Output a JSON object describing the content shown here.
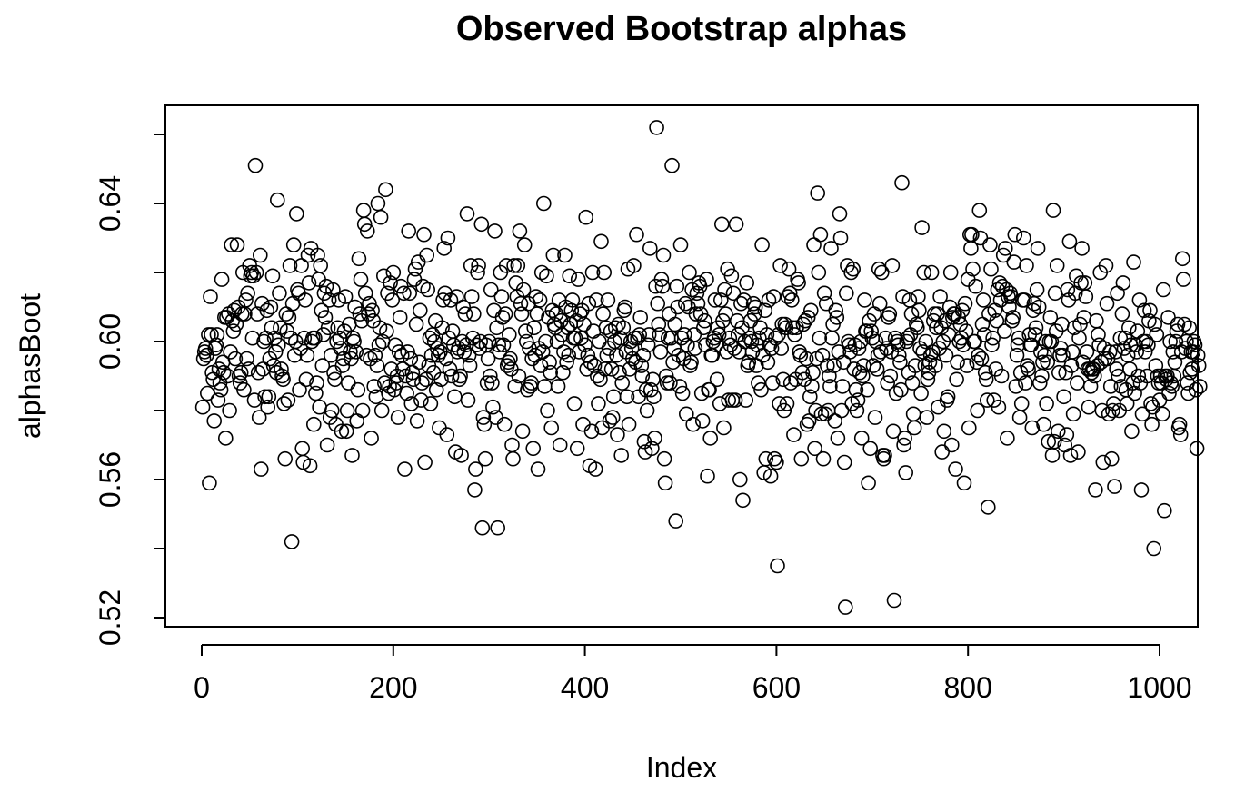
{
  "chart_data": {
    "type": "scatter",
    "title": "Observed Bootstrap alphas",
    "xlabel": "Index",
    "ylabel": "alphasBoot",
    "xlim": [
      0,
      1000
    ],
    "ylim": [
      0.52,
      0.66
    ],
    "x_ticks": [
      0,
      200,
      400,
      600,
      800,
      1000
    ],
    "x_tick_labels": [
      "0",
      "200",
      "400",
      "600",
      "800",
      "1000"
    ],
    "y_ticks": [
      0.52,
      0.54,
      0.56,
      0.58,
      0.6,
      0.62,
      0.64,
      0.66
    ],
    "y_tick_labels": [
      "0.52",
      "",
      "0.56",
      "",
      "0.60",
      "",
      "0.64",
      ""
    ],
    "grid": false,
    "legend": "none",
    "marker": "open-circle",
    "n_points": 1000,
    "x_start": 1,
    "y": [
      0.581,
      0.595,
      0.597,
      0.598,
      0.596,
      0.585,
      0.602,
      0.559,
      0.613,
      0.602,
      0.591,
      0.589,
      0.577,
      0.598,
      0.599,
      0.602,
      0.583,
      0.592,
      0.588,
      0.586,
      0.618,
      0.594,
      0.591,
      0.607,
      0.572,
      0.607,
      0.59,
      0.608,
      0.58,
      0.597,
      0.628,
      0.606,
      0.603,
      0.609,
      0.595,
      0.605,
      0.628,
      0.61,
      0.59,
      0.588,
      0.591,
      0.608,
      0.62,
      0.586,
      0.608,
      0.612,
      0.595,
      0.614,
      0.592,
      0.622,
      0.619,
      0.62,
      0.601,
      0.619,
      0.583,
      0.651,
      0.62,
      0.608,
      0.591,
      0.578,
      0.625,
      0.563,
      0.611,
      0.592,
      0.6,
      0.584,
      0.601,
      0.609,
      0.581,
      0.584,
      0.595,
      0.61,
      0.604,
      0.619,
      0.593,
      0.601,
      0.597,
      0.591,
      0.641,
      0.599,
      0.614,
      0.604,
      0.592,
      0.59,
      0.589,
      0.582,
      0.566,
      0.608,
      0.603,
      0.583,
      0.607,
      0.622,
      0.601,
      0.542,
      0.611,
      0.628,
      0.596,
      0.6,
      0.637,
      0.615,
      0.614,
      0.586,
      0.598,
      0.622,
      0.569,
      0.565,
      0.601,
      0.612,
      0.589,
      0.596,
      0.625,
      0.617,
      0.564,
      0.627,
      0.6,
      0.601,
      0.576,
      0.601,
      0.585,
      0.588,
      0.625,
      0.618,
      0.581,
      0.622,
      0.609,
      0.593,
      0.602,
      0.614,
      0.607,
      0.616,
      0.57,
      0.604,
      0.612,
      0.578,
      0.596,
      0.58,
      0.615,
      0.591,
      0.589,
      0.576,
      0.6,
      0.604,
      0.612,
      0.601,
      0.598,
      0.574,
      0.593,
      0.595,
      0.603,
      0.613,
      0.574,
      0.58,
      0.588,
      0.605,
      0.597,
      0.595,
      0.567,
      0.601,
      0.6,
      0.61,
      0.597,
      0.577,
      0.586,
      0.624,
      0.608,
      0.618,
      0.606,
      0.58,
      0.638,
      0.634,
      0.614,
      0.596,
      0.632,
      0.608,
      0.611,
      0.595,
      0.572,
      0.609,
      0.606,
      0.587,
      0.596,
      0.584,
      0.593,
      0.64,
      0.599,
      0.604,
      0.636,
      0.58,
      0.6,
      0.619,
      0.588,
      0.644,
      0.603,
      0.614,
      0.585,
      0.587,
      0.617,
      0.592,
      0.612,
      0.62,
      0.586,
      0.599,
      0.588,
      0.59,
      0.578,
      0.597,
      0.607,
      0.616,
      0.596,
      0.592,
      0.614,
      0.563,
      0.59,
      0.585,
      0.597,
      0.632,
      0.614,
      0.595,
      0.582,
      0.591,
      0.589,
      0.618,
      0.621,
      0.605,
      0.577,
      0.623,
      0.594,
      0.609,
      0.583,
      0.588,
      0.616,
      0.631,
      0.565,
      0.589,
      0.625,
      0.615,
      0.593,
      0.601,
      0.582,
      0.596,
      0.602,
      0.591,
      0.6,
      0.606,
      0.586,
      0.598,
      0.596,
      0.575,
      0.597,
      0.589,
      0.604,
      0.612,
      0.627,
      0.614,
      0.595,
      0.573,
      0.63,
      0.601,
      0.592,
      0.612,
      0.59,
      0.603,
      0.599,
      0.584,
      0.568,
      0.613,
      0.597,
      0.598,
      0.589,
      0.59,
      0.567,
      0.6,
      0.61,
      0.597,
      0.608,
      0.599,
      0.637,
      0.583,
      0.596,
      0.593,
      0.622,
      0.613,
      0.601,
      0.608,
      0.557,
      0.563,
      0.599,
      0.62,
      0.622,
      0.598,
      0.6,
      0.634,
      0.546,
      0.578,
      0.576,
      0.566,
      0.599,
      0.588,
      0.595,
      0.6,
      0.59,
      0.615,
      0.588,
      0.581,
      0.609,
      0.632,
      0.578,
      0.604,
      0.546,
      0.599,
      0.597,
      0.62,
      0.613,
      0.607,
      0.599,
      0.576,
      0.608,
      0.622,
      0.593,
      0.594,
      0.602,
      0.595,
      0.592,
      0.57,
      0.566,
      0.622,
      0.587,
      0.617,
      0.613,
      0.622,
      0.59,
      0.632,
      0.611,
      0.608,
      0.574,
      0.615,
      0.628,
      0.603,
      0.6,
      0.586,
      0.611,
      0.598,
      0.587,
      0.588,
      0.595,
      0.569,
      0.604,
      0.596,
      0.613,
      0.608,
      0.563,
      0.598,
      0.612,
      0.593,
      0.62,
      0.597,
      0.64,
      0.587,
      0.6,
      0.619,
      0.58,
      0.607,
      0.594,
      0.591,
      0.575,
      0.609,
      0.625,
      0.605,
      0.604,
      0.608,
      0.6,
      0.587,
      0.612,
      0.57,
      0.606,
      0.602,
      0.591,
      0.597,
      0.625,
      0.61,
      0.594,
      0.604,
      0.596,
      0.619,
      0.605,
      0.609,
      0.612,
      0.601,
      0.582,
      0.601,
      0.606,
      0.569,
      0.618,
      0.597,
      0.608,
      0.601,
      0.609,
      0.576,
      0.605,
      0.599,
      0.636,
      0.592,
      0.596,
      0.611,
      0.564,
      0.594,
      0.574,
      0.62,
      0.603,
      0.593,
      0.563,
      0.612,
      0.59,
      0.582,
      0.6,
      0.589,
      0.629,
      0.575,
      0.608,
      0.62,
      0.592,
      0.604,
      0.596,
      0.612,
      0.598,
      0.577,
      0.603,
      0.592,
      0.578,
      0.584,
      0.6,
      0.604,
      0.596,
      0.573,
      0.605,
      0.591,
      0.601,
      0.567,
      0.588,
      0.604,
      0.609,
      0.61,
      0.597,
      0.584,
      0.621,
      0.576,
      0.592,
      0.6,
      0.598,
      0.595,
      0.622,
      0.601,
      0.594,
      0.631,
      0.601,
      0.584,
      0.602,
      0.607,
      0.593,
      0.59,
      0.596,
      0.571,
      0.568,
      0.586,
      0.58,
      0.599,
      0.602,
      0.627,
      0.586,
      0.569,
      0.589,
      0.584,
      0.572,
      0.616,
      0.662,
      0.611,
      0.605,
      0.602,
      0.597,
      0.618,
      0.616,
      0.625,
      0.566,
      0.559,
      0.59,
      0.588,
      0.601,
      0.608,
      0.588,
      0.601,
      0.651,
      0.594,
      0.598,
      0.605,
      0.548,
      0.616,
      0.61,
      0.596,
      0.587,
      0.628,
      0.601,
      0.585,
      0.595,
      0.602,
      0.611,
      0.579,
      0.599,
      0.61,
      0.62,
      0.593,
      0.594,
      0.615,
      0.576,
      0.602,
      0.598,
      0.608,
      0.614,
      0.611,
      0.617,
      0.616,
      0.608,
      0.585,
      0.577,
      0.604,
      0.606,
      0.599,
      0.618,
      0.561,
      0.586,
      0.586,
      0.572,
      0.596,
      0.596,
      0.6,
      0.601,
      0.612,
      0.599,
      0.589,
      0.604,
      0.602,
      0.582,
      0.612,
      0.634,
      0.606,
      0.575,
      0.615,
      0.608,
      0.597,
      0.621,
      0.583,
      0.601,
      0.599,
      0.619,
      0.583,
      0.614,
      0.598,
      0.583,
      0.634,
      0.606,
      0.602,
      0.597,
      0.56,
      0.611,
      0.604,
      0.554,
      0.612,
      0.6,
      0.583,
      0.617,
      0.593,
      0.594,
      0.601,
      0.606,
      0.6,
      0.597,
      0.611,
      0.608,
      0.61,
      0.593,
      0.599,
      0.588,
      0.601,
      0.604,
      0.586,
      0.628,
      0.596,
      0.562,
      0.609,
      0.566,
      0.602,
      0.594,
      0.612,
      0.599,
      0.561,
      0.598,
      0.588,
      0.613,
      0.566,
      0.601,
      0.565,
      0.535,
      0.602,
      0.582,
      0.622,
      0.598,
      0.605,
      0.589,
      0.58,
      0.605,
      0.604,
      0.582,
      0.613,
      0.621,
      0.614,
      0.588,
      0.612,
      0.604,
      0.573,
      0.602,
      0.589,
      0.604,
      0.618,
      0.617,
      0.597,
      0.596,
      0.566,
      0.591,
      0.605,
      0.589,
      0.606,
      0.595,
      0.576,
      0.607,
      0.577,
      0.584,
      0.609,
      0.587,
      0.591,
      0.628,
      0.569,
      0.58,
      0.595,
      0.643,
      0.62,
      0.601,
      0.631,
      0.579,
      0.596,
      0.566,
      0.614,
      0.579,
      0.611,
      0.593,
      0.58,
      0.59,
      0.587,
      0.627,
      0.601,
      0.605,
      0.593,
      0.577,
      0.609,
      0.607,
      0.572,
      0.597,
      0.637,
      0.63,
      0.58,
      0.587,
      0.594,
      0.565,
      0.523,
      0.614,
      0.622,
      0.6,
      0.599,
      0.597,
      0.62,
      0.582,
      0.621,
      0.592,
      0.599,
      0.586,
      0.58,
      0.583,
      0.598,
      0.591,
      0.6,
      0.572,
      0.59,
      0.593,
      0.612,
      0.603,
      0.603,
      0.586,
      0.559,
      0.606,
      0.569,
      0.603,
      0.601,
      0.593,
      0.608,
      0.578,
      0.6,
      0.592,
      0.596,
      0.621,
      0.611,
      0.597,
      0.62,
      0.567,
      0.566,
      0.567,
      0.601,
      0.598,
      0.588,
      0.607,
      0.608,
      0.59,
      0.597,
      0.622,
      0.574,
      0.525,
      0.601,
      0.585,
      0.6,
      0.599,
      0.596,
      0.594,
      0.586,
      0.646,
      0.613,
      0.57,
      0.572,
      0.562,
      0.6,
      0.601,
      0.591,
      0.612,
      0.602,
      0.608,
      0.588,
      0.579,
      0.575,
      0.593,
      0.605,
      0.604,
      0.613,
      0.609,
      0.598,
      0.585,
      0.633,
      0.597,
      0.62,
      0.593,
      0.6,
      0.578,
      0.589,
      0.591,
      0.594,
      0.596,
      0.62,
      0.597,
      0.606,
      0.608,
      0.593,
      0.604,
      0.608,
      0.581,
      0.598,
      0.613,
      0.604,
      0.568,
      0.6,
      0.574,
      0.606,
      0.596,
      0.583,
      0.584,
      0.602,
      0.61,
      0.62,
      0.57,
      0.607,
      0.608,
      0.608,
      0.563,
      0.589,
      0.594,
      0.607,
      0.6,
      0.605,
      0.601,
      0.609,
      0.599,
      0.559,
      0.611,
      0.603,
      0.593,
      0.618,
      0.575,
      0.631,
      0.627,
      0.631,
      0.621,
      0.6,
      0.6,
      0.616,
      0.594,
      0.58,
      0.596,
      0.638,
      0.63,
      0.595,
      0.605,
      0.612,
      0.602,
      0.591,
      0.589,
      0.583,
      0.552,
      0.608,
      0.628,
      0.621,
      0.599,
      0.601,
      0.583,
      0.609,
      0.592,
      0.606,
      0.615,
      0.581,
      0.617,
      0.612,
      0.59,
      0.616,
      0.625,
      0.603,
      0.627,
      0.615,
      0.572,
      0.613,
      0.61,
      0.614,
      0.613,
      0.606,
      0.607,
      0.623,
      0.631,
      0.587,
      0.596,
      0.599,
      0.601,
      0.578,
      0.591,
      0.582,
      0.612,
      0.63,
      0.612,
      0.588,
      0.622,
      0.593,
      0.592,
      0.602,
      0.599,
      0.599,
      0.575,
      0.609,
      0.611,
      0.602,
      0.604,
      0.615,
      0.627,
      0.61,
      0.588,
      0.597,
      0.59,
      0.594,
      0.576,
      0.596,
      0.6,
      0.582,
      0.594,
      0.571,
      0.6,
      0.607,
      0.6,
      0.567,
      0.638,
      0.571,
      0.614,
      0.603,
      0.622,
      0.574,
      0.591,
      0.596,
      0.598,
      0.605,
      0.596,
      0.584,
      0.57,
      0.591,
      0.573,
      0.615,
      0.612,
      0.629,
      0.567,
      0.593,
      0.597,
      0.579,
      0.604,
      0.614,
      0.619,
      0.588,
      0.568,
      0.601,
      0.605,
      0.617,
      0.627,
      0.594,
      0.607,
      0.617,
      0.613,
      0.597,
      0.592,
      0.581,
      0.592,
      0.587,
      0.591,
      0.592,
      0.592,
      0.59,
      0.557,
      0.606,
      0.593,
      0.602,
      0.599,
      0.62,
      0.594,
      0.58,
      0.565,
      0.598,
      0.595,
      0.622,
      0.611,
      0.595,
      0.579,
      0.597,
      0.587,
      0.566,
      0.58,
      0.582,
      0.558,
      0.597,
      0.592,
      0.614,
      0.59,
      0.58,
      0.601,
      0.587,
      0.608,
      0.617,
      0.598,
      0.601,
      0.586,
      0.582,
      0.596,
      0.604,
      0.592,
      0.599,
      0.574,
      0.588,
      0.623,
      0.585,
      0.599,
      0.597,
      0.603,
      0.59,
      0.612,
      0.588,
      0.557,
      0.579,
      0.6,
      0.609,
      0.597,
      0.6,
      0.59,
      0.599,
      0.606,
      0.609,
      0.582,
      0.576,
      0.581,
      0.54,
      0.605,
      0.593,
      0.602,
      0.59,
      0.588,
      0.583,
      0.59,
      0.588,
      0.579,
      0.615,
      0.551,
      0.59,
      0.589,
      0.59,
      0.607,
      0.585,
      0.6,
      0.588,
      0.587,
      0.597,
      0.59,
      0.594,
      0.6,
      0.603,
      0.605,
      0.575,
      0.576,
      0.573,
      0.597,
      0.624,
      0.618,
      0.605,
      0.598,
      0.6,
      0.588,
      0.585,
      0.604,
      0.591,
      0.597,
      0.592,
      0.597,
      0.6,
      0.599,
      0.586,
      0.569,
      0.596,
      0.593,
      0.587
    ]
  }
}
